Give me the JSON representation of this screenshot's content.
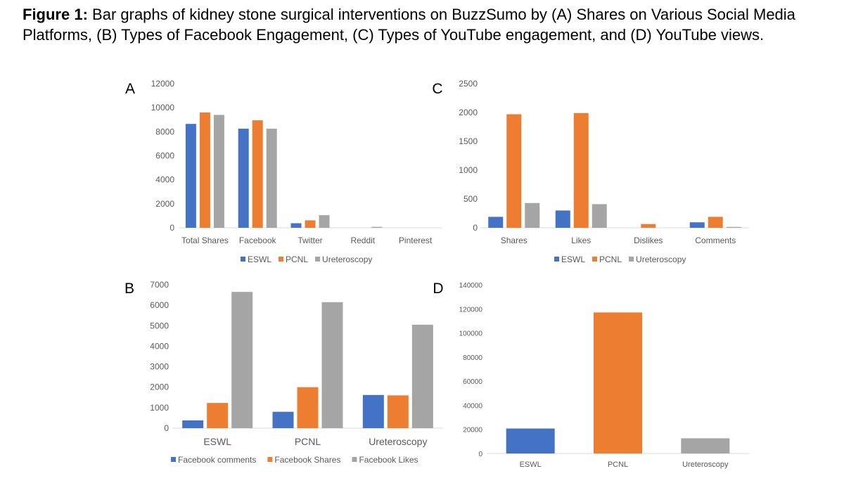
{
  "caption": {
    "label": "Figure 1:",
    "text": "Bar graphs of kidney stone surgical interventions on BuzzSumo by (A) Shares on Various Social Media Platforms, (B) Types of Facebook Engagement, (C) Types of YouTube engagement, and (D) YouTube views."
  },
  "colors": {
    "ESWL": "#4472C4",
    "PCNL": "#ED7D31",
    "Ureteroscopy": "#A5A5A5",
    "axis": "#D9D9D9",
    "text": "#595959"
  },
  "chart_data": [
    {
      "panel": "A",
      "type": "bar",
      "categories": [
        "Total Shares",
        "Facebook",
        "Twitter",
        "Reddit",
        "Pinterest"
      ],
      "series": [
        {
          "name": "ESWL",
          "values": [
            8650,
            8250,
            380,
            0,
            0
          ]
        },
        {
          "name": "PCNL",
          "values": [
            9600,
            8950,
            620,
            0,
            0
          ]
        },
        {
          "name": "Ureteroscopy",
          "values": [
            9400,
            8250,
            1050,
            80,
            0
          ]
        }
      ],
      "ylim": [
        0,
        12000
      ],
      "yticks": [
        0,
        2000,
        4000,
        6000,
        8000,
        10000,
        12000
      ],
      "legend": "bottom"
    },
    {
      "panel": "B",
      "type": "bar",
      "categories": [
        "ESWL",
        "PCNL",
        "Ureteroscopy"
      ],
      "series": [
        {
          "name": "Facebook comments",
          "values": [
            380,
            800,
            1620
          ]
        },
        {
          "name": "Facebook Shares",
          "values": [
            1230,
            2000,
            1600
          ]
        },
        {
          "name": "Facebook Likes",
          "values": [
            6650,
            6150,
            5050
          ]
        }
      ],
      "ylim": [
        0,
        7000
      ],
      "yticks": [
        0,
        1000,
        2000,
        3000,
        4000,
        5000,
        6000,
        7000
      ],
      "legend": "bottom"
    },
    {
      "panel": "C",
      "type": "bar",
      "categories": [
        "Shares",
        "Likes",
        "Dislikes",
        "Comments"
      ],
      "series": [
        {
          "name": "ESWL",
          "values": [
            190,
            300,
            0,
            95
          ]
        },
        {
          "name": "PCNL",
          "values": [
            1970,
            1990,
            65,
            190
          ]
        },
        {
          "name": "Ureteroscopy",
          "values": [
            430,
            410,
            0,
            15
          ]
        }
      ],
      "ylim": [
        0,
        2500
      ],
      "yticks": [
        0,
        500,
        1000,
        1500,
        2000,
        2500
      ],
      "legend": "bottom"
    },
    {
      "panel": "D",
      "type": "bar",
      "categories": [
        "ESWL",
        "PCNL",
        "Ureteroscopy"
      ],
      "values": [
        20700,
        117000,
        12600
      ],
      "ylim": [
        0,
        140000
      ],
      "yticks": [
        0,
        20000,
        40000,
        60000,
        80000,
        100000,
        120000,
        140000
      ],
      "legend": "none"
    }
  ]
}
